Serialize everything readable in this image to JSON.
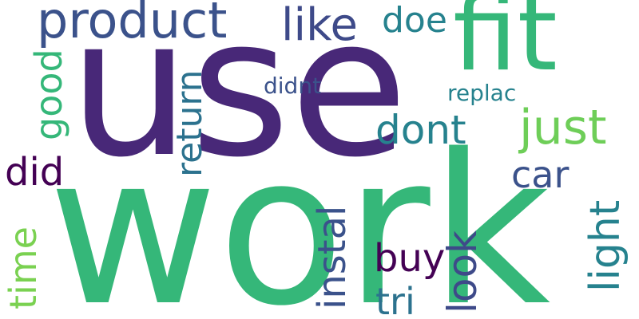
{
  "palette": {
    "dark_purple": "#482878",
    "deep_purple": "#440154",
    "indigo": "#3e4a89",
    "slate_blue": "#3b528b",
    "teal": "#26828e",
    "blue_teal": "#2c728e",
    "green": "#35b779",
    "light_green": "#6ece58",
    "lime": "#7ad151"
  },
  "words": [
    {
      "text": "work",
      "color": "#35b779"
    },
    {
      "text": "use",
      "color": "#482878"
    },
    {
      "text": "fit",
      "color": "#35b779"
    },
    {
      "text": "product",
      "color": "#3b528b"
    },
    {
      "text": "like",
      "color": "#3e4a89"
    },
    {
      "text": "doe",
      "color": "#26828e"
    },
    {
      "text": "just",
      "color": "#6ece58"
    },
    {
      "text": "dont",
      "color": "#26828e"
    },
    {
      "text": "did",
      "color": "#440154"
    },
    {
      "text": "car",
      "color": "#3b528b"
    },
    {
      "text": "good",
      "color": "#35b779"
    },
    {
      "text": "return",
      "color": "#2c728e"
    },
    {
      "text": "didnt",
      "color": "#3b528b"
    },
    {
      "text": "replac",
      "color": "#26828e"
    },
    {
      "text": "instal",
      "color": "#3b528b"
    },
    {
      "text": "light",
      "color": "#26828e"
    },
    {
      "text": "time",
      "color": "#7ad151"
    },
    {
      "text": "buy",
      "color": "#440154"
    },
    {
      "text": "look",
      "color": "#3e4a89"
    },
    {
      "text": "tri",
      "color": "#2c728e"
    }
  ]
}
